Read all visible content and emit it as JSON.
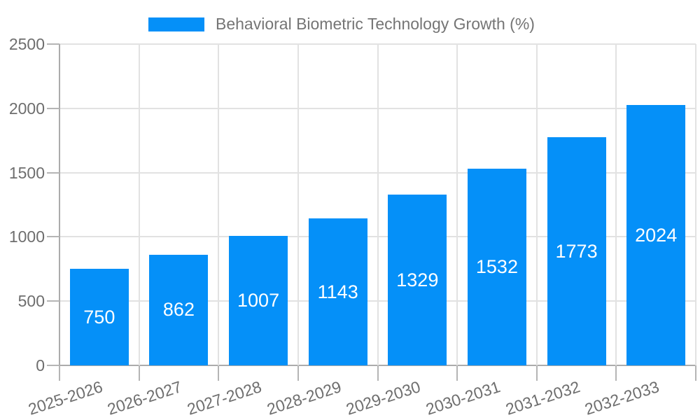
{
  "legend": {
    "label": "Behavioral Biometric Technology Growth (%)"
  },
  "chart_data": {
    "type": "bar",
    "title": "",
    "legend_position": "top",
    "legend_label": "Behavioral Biometric Technology Growth (%)",
    "categories": [
      "2025-2026",
      "2026-2027",
      "2027-2028",
      "2028-2029",
      "2029-2030",
      "2030-2031",
      "2031-2032",
      "2032-2033"
    ],
    "values": [
      750,
      862,
      1007,
      1143,
      1329,
      1532,
      1773,
      2024
    ],
    "value_labels": [
      "750",
      "862",
      "1007",
      "1143",
      "1329",
      "1532",
      "1773",
      "2024"
    ],
    "xlabel": "",
    "ylabel": "",
    "ylim": [
      0,
      2500
    ],
    "ytick_step": 500,
    "ytick_labels": [
      "0",
      "500",
      "1000",
      "1500",
      "2000",
      "2500"
    ],
    "grid": true,
    "colors": {
      "bar": "#0590f8",
      "value_text": "#ffffff",
      "grid": "#e2e2e2",
      "axis": "#ababab",
      "tick": "#b5b5b5",
      "text": "#6e6e6e",
      "legend_text": "#757575"
    }
  }
}
